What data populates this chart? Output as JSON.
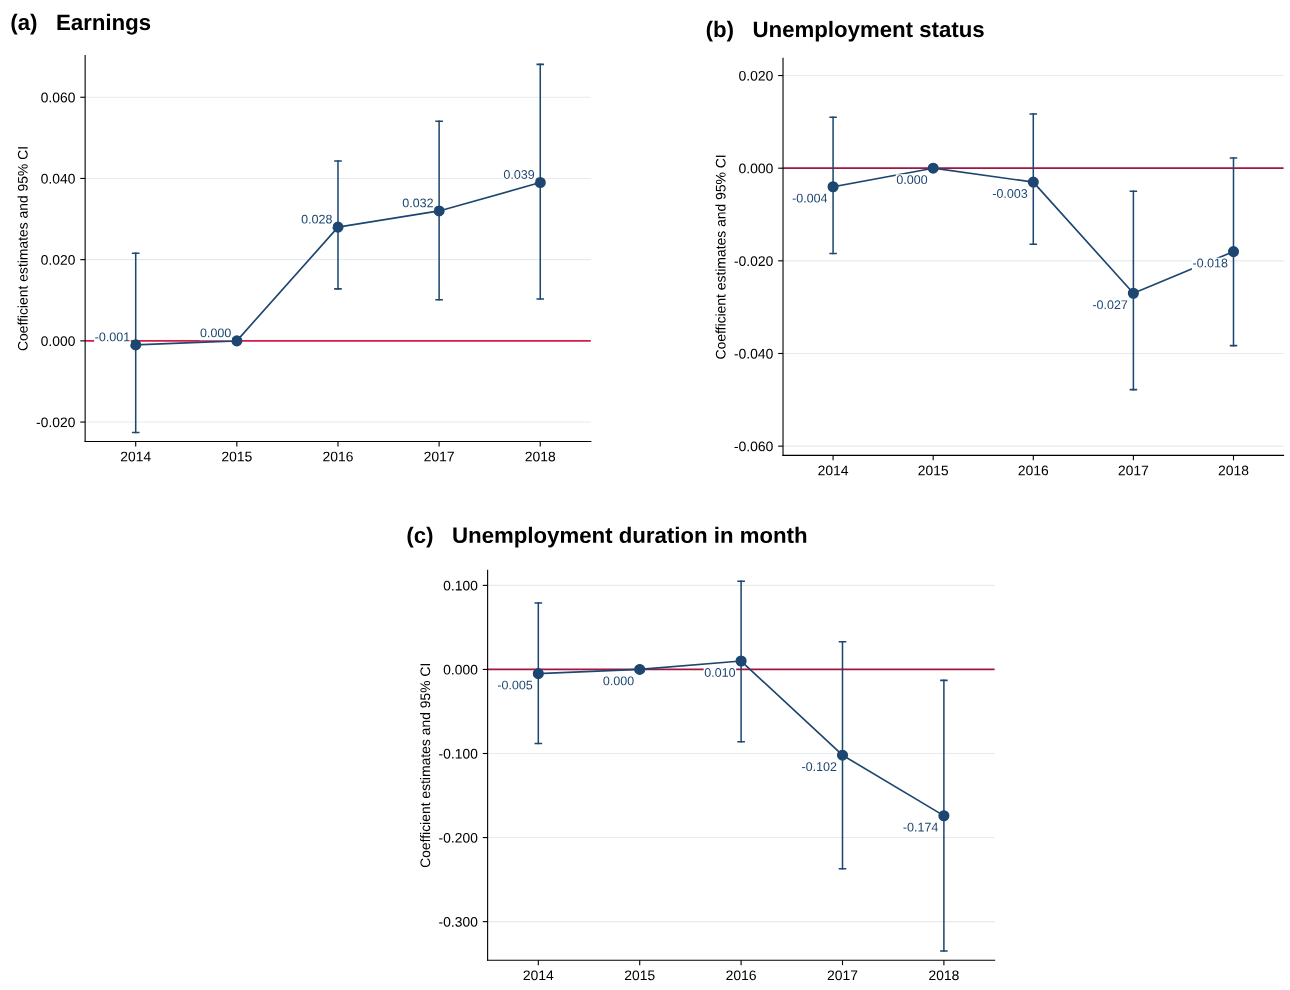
{
  "chart_data": [
    {
      "type": "line",
      "title": "(a)   Earnings",
      "ylabel": "Coefficient estimates and 95% CI",
      "categories": [
        "2014",
        "2015",
        "2016",
        "2017",
        "2018"
      ],
      "series": [
        {
          "color": "#1d4770",
          "values": [
            -0.001,
            0.0,
            0.028,
            0.032,
            0.039
          ],
          "value_labels": [
            "-0.001",
            "0.000",
            "0.028",
            "0.032",
            "0.039"
          ],
          "errors": [
            [
              -0.0226,
              0.0216
            ],
            null,
            [
              0.0128,
              0.0443
            ],
            [
              0.0101,
              0.0541
            ],
            [
              0.0103,
              0.0681
            ]
          ]
        }
      ],
      "ylim": [
        -0.0248,
        0.0703
      ],
      "yticks": [
        {
          "value": -0.02,
          "label": "-0.020"
        },
        {
          "value": 0,
          "label": "0.000"
        },
        {
          "value": 0.02,
          "label": "0.020"
        },
        {
          "value": 0.04,
          "label": "0.040"
        },
        {
          "value": 0.06,
          "label": "0.060"
        }
      ],
      "ref_lines": [
        {
          "axis": "y",
          "value": 0,
          "color": "#d81b4a"
        }
      ],
      "grid": "y",
      "marker": "circle",
      "legend": false
    },
    {
      "type": "line",
      "title": "(b)   Unemployment status",
      "ylabel": "Coefficient estimates and 95% CI",
      "categories": [
        "2014",
        "2015",
        "2016",
        "2017",
        "2018"
      ],
      "series": [
        {
          "color": "#1d4770",
          "values": [
            -0.004,
            0.0,
            -0.003,
            -0.027,
            -0.018
          ],
          "value_labels": [
            "-0.004",
            "0.000",
            "-0.003",
            "-0.027",
            "-0.018"
          ],
          "errors": [
            [
              -0.0184,
              0.011
            ],
            null,
            [
              -0.0164,
              0.0117
            ],
            [
              -0.0478,
              -0.005
            ],
            [
              -0.0383,
              0.0022
            ]
          ]
        }
      ],
      "ylim": [
        -0.062,
        0.0237
      ],
      "yticks": [
        {
          "value": -0.06,
          "label": "-0.060"
        },
        {
          "value": -0.04,
          "label": "-0.040"
        },
        {
          "value": -0.02,
          "label": "-0.020"
        },
        {
          "value": 0,
          "label": "0.000"
        },
        {
          "value": 0.02,
          "label": "0.020"
        }
      ],
      "ref_lines": [
        {
          "axis": "y",
          "value": 0,
          "color": "#a3153f"
        }
      ],
      "grid": "y",
      "marker": "circle",
      "legend": false
    },
    {
      "type": "line",
      "title": "(c)   Unemployment duration in month",
      "ylabel": "Coefficient estimates and 95% CI",
      "categories": [
        "2014",
        "2015",
        "2016",
        "2017",
        "2018"
      ],
      "series": [
        {
          "color": "#1d4770",
          "values": [
            -0.005,
            0.0,
            0.01,
            -0.102,
            -0.174
          ],
          "value_labels": [
            "-0.005",
            "0.000",
            "0.010",
            "-0.102",
            "-0.174"
          ],
          "errors": [
            [
              -0.088,
              0.079
            ],
            null,
            [
              -0.086,
              0.105
            ],
            [
              -0.237,
              0.033
            ],
            [
              -0.335,
              -0.013
            ]
          ]
        }
      ],
      "ylim": [
        -0.346,
        0.118
      ],
      "yticks": [
        {
          "value": -0.3,
          "label": "-0.300"
        },
        {
          "value": -0.2,
          "label": "-0.200"
        },
        {
          "value": -0.1,
          "label": "-0.100"
        },
        {
          "value": 0,
          "label": "0.000"
        },
        {
          "value": 0.1,
          "label": "0.100"
        }
      ],
      "ref_lines": [
        {
          "axis": "y",
          "value": 0,
          "color": "#a3153f"
        }
      ],
      "grid": "y",
      "marker": "circle",
      "legend": false
    }
  ]
}
